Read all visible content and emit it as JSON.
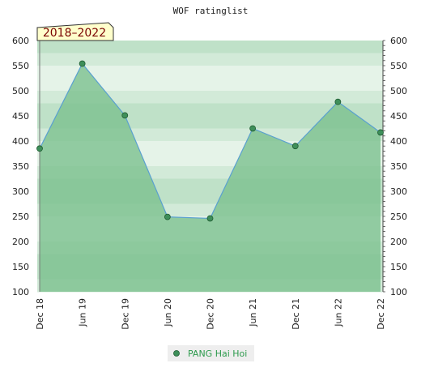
{
  "chart_data": {
    "type": "area",
    "title": "WOF ratinglist",
    "period_label": "2018–2022",
    "xlabel": "",
    "ylabel": "",
    "categories": [
      "Dec 18",
      "Jun 19",
      "Dec 19",
      "Jun 20",
      "Dec 20",
      "Jun 21",
      "Dec 21",
      "Jun 22",
      "Dec 22"
    ],
    "y_ticks": [
      100,
      150,
      200,
      250,
      300,
      350,
      400,
      450,
      500,
      550,
      600
    ],
    "ylim": [
      100,
      600
    ],
    "y_axis_sides": "both",
    "series": [
      {
        "name": "PANG Hai Hoi",
        "values": [
          385,
          554,
          451,
          249,
          246,
          425,
          390,
          478,
          417
        ]
      }
    ],
    "legend_position": "bottom-center",
    "colors": {
      "line": "#5aa0d0",
      "fill": "#7cc08e",
      "marker": "#3e8f5a",
      "band_light": "#eef7f0",
      "band_dark": "#b5dcc0"
    }
  }
}
